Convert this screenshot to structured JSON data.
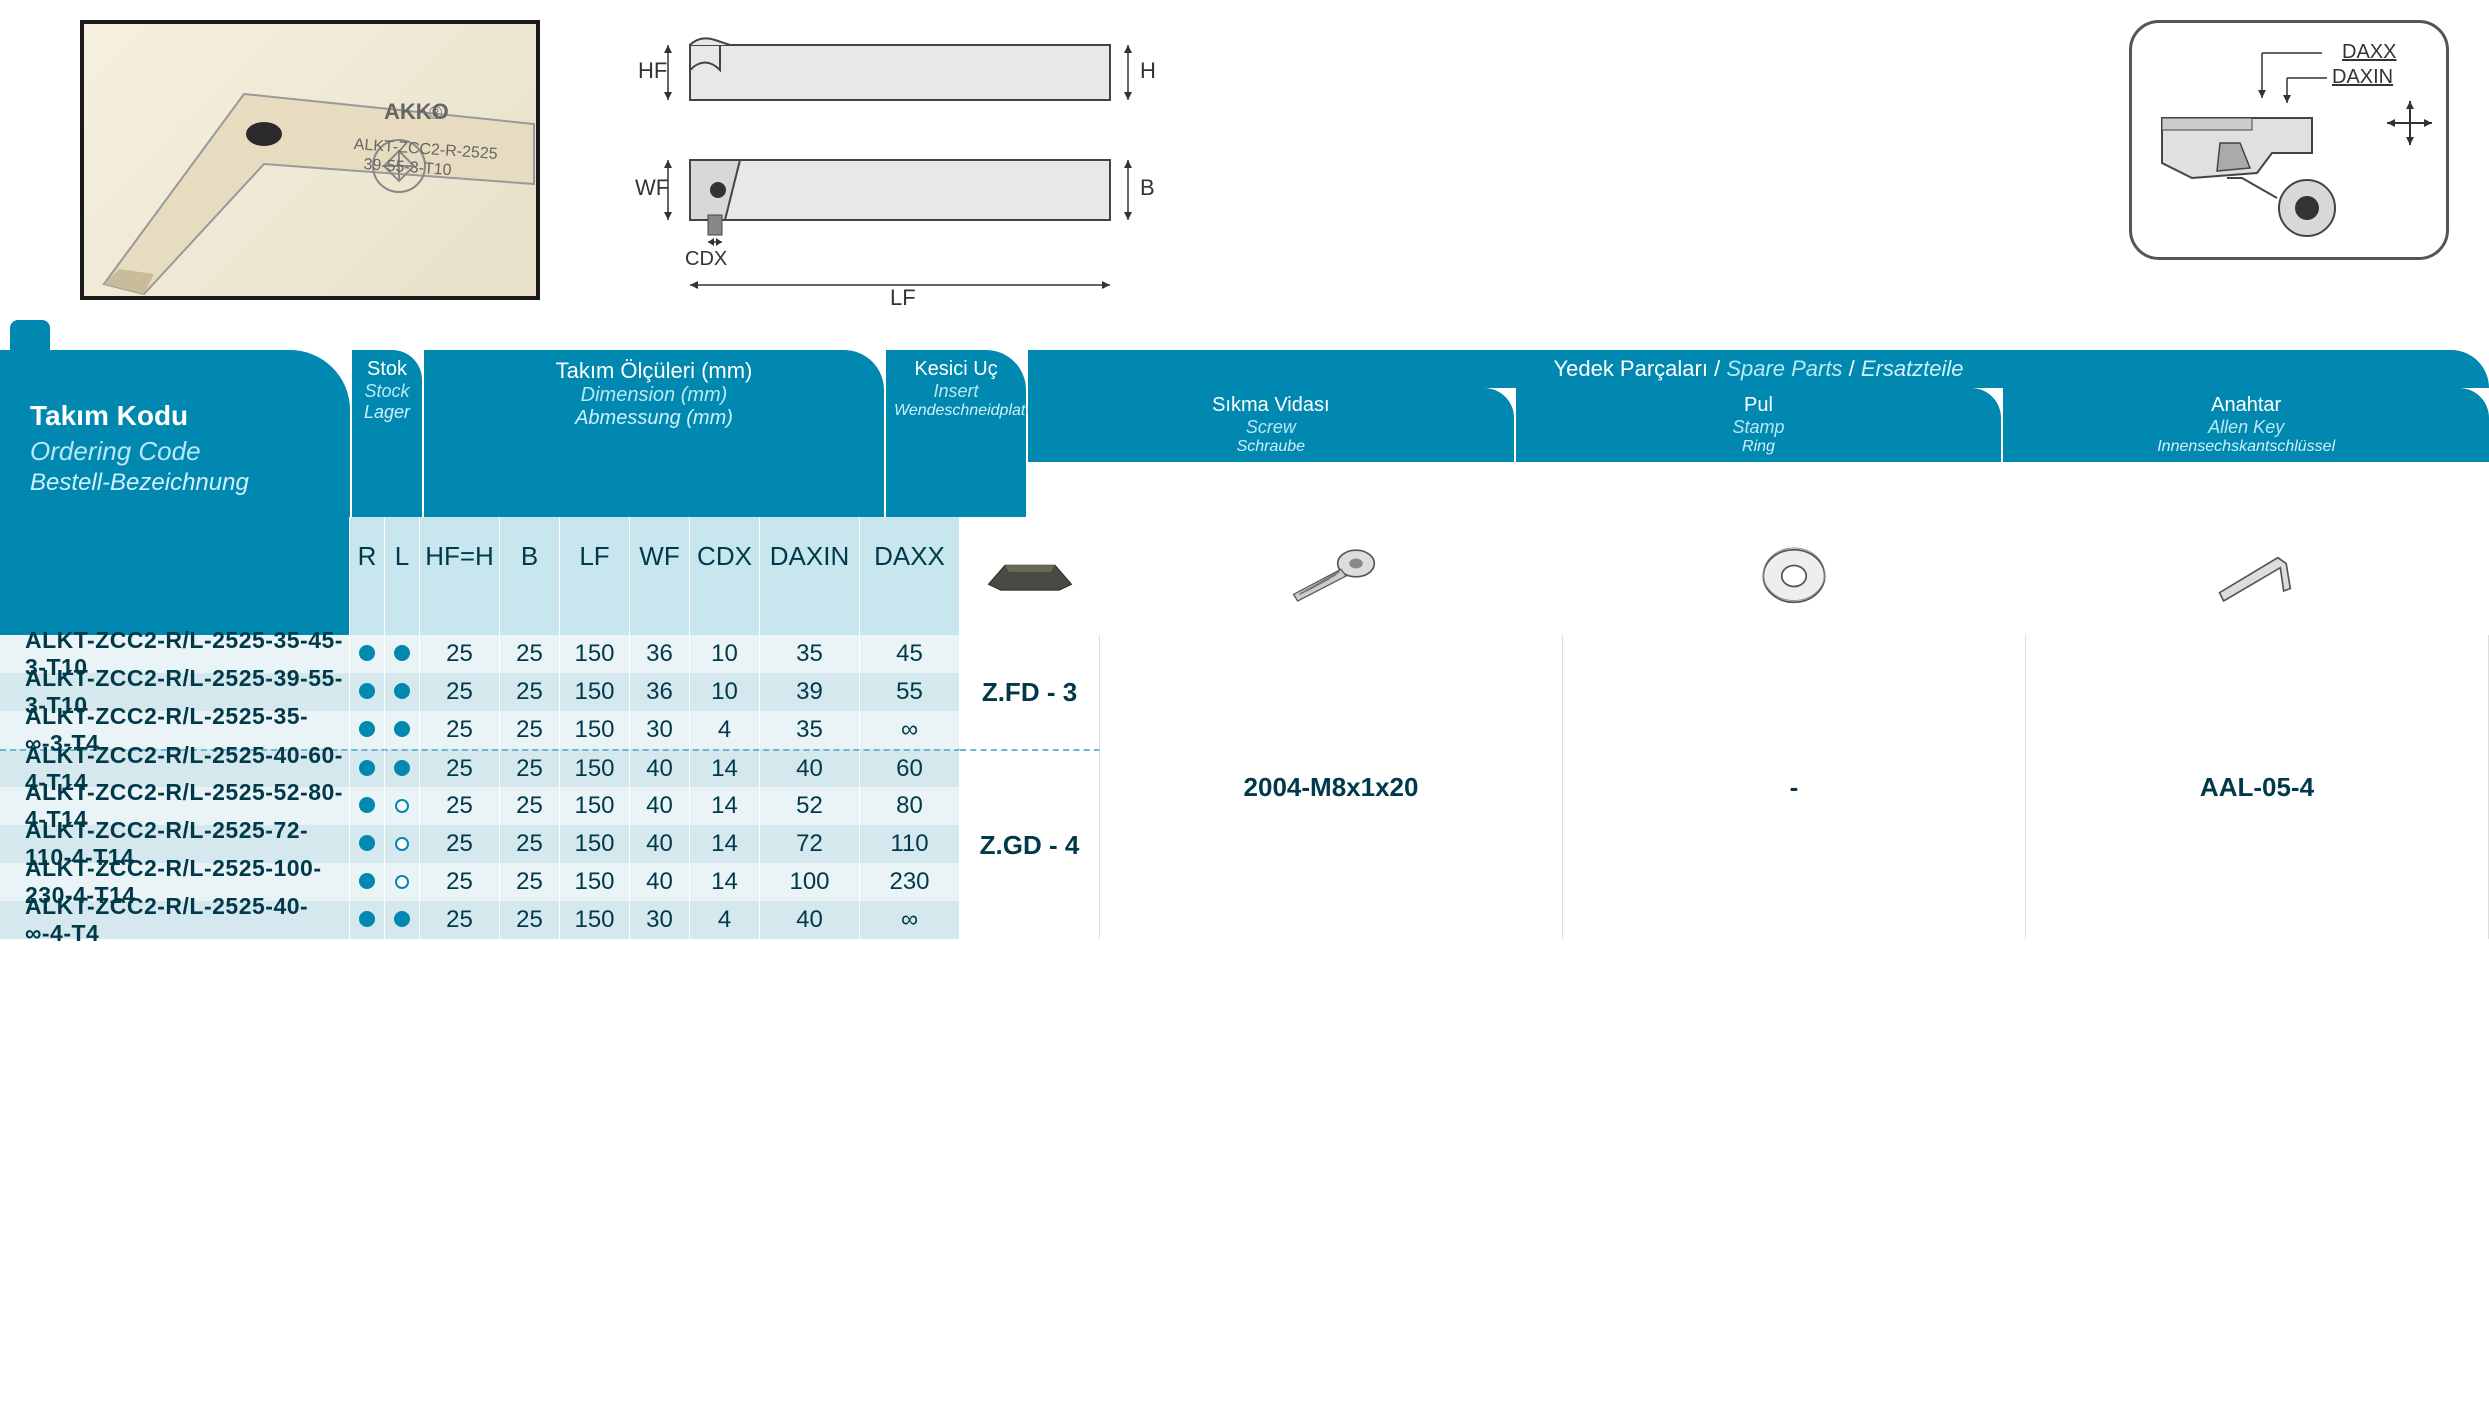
{
  "colors": {
    "header_bg": "#0088b0",
    "subheader_bg": "#c8e6ee",
    "row_odd": "#eaf3f6",
    "row_even": "#d4e8ee",
    "text_dark": "#003a4a",
    "accent_light": "#b8e8f5"
  },
  "product_label": {
    "brand": "AKKO",
    "model": "ALKT-ZCC2-R-2525",
    "code": "39-55-3-T10"
  },
  "diagram_labels": {
    "hf": "HF",
    "h": "H",
    "wf": "WF",
    "b": "B",
    "cdx": "CDX",
    "lf": "LF",
    "daxx": "DAXX",
    "daxin": "DAXIN"
  },
  "headers": {
    "ordering_code": {
      "tr": "Takım Kodu",
      "en": "Ordering Code",
      "de": "Bestell-Bezeichnung"
    },
    "stock": {
      "tr": "Stok",
      "en": "Stock",
      "de": "Lager"
    },
    "dimensions": {
      "tr": "Takım Ölçüleri (mm)",
      "en": "Dimension (mm)",
      "de": "Abmessung (mm)"
    },
    "insert": {
      "tr": "Kesici Uç",
      "en": "Insert",
      "de": "Wendeschneidplatte"
    },
    "spare_parts": {
      "tr": "Yedek Parçaları",
      "en": "Spare Parts",
      "de": "Ersatzteile"
    },
    "screw": {
      "tr": "Sıkma Vidası",
      "en": "Screw",
      "de": "Schraube"
    },
    "stamp": {
      "tr": "Pul",
      "en": "Stamp",
      "de": "Ring"
    },
    "key": {
      "tr": "Anahtar",
      "en": "Allen Key",
      "de": "Innensechskantschlüssel"
    }
  },
  "sub_headers": {
    "r": "R",
    "l": "L",
    "hf": "HF=H",
    "b": "B",
    "lf": "LF",
    "wf": "WF",
    "cdx": "CDX",
    "daxin": "DAXIN",
    "daxx": "DAXX"
  },
  "groups": [
    {
      "insert": "Z.FD - 3",
      "rows": [
        {
          "code": "ALKT-ZCC2-R/L-2525-35-45-3-T10",
          "r": true,
          "l": true,
          "hf": "25",
          "b": "25",
          "lf": "150",
          "wf": "36",
          "cdx": "10",
          "daxin": "35",
          "daxx": "45"
        },
        {
          "code": "ALKT-ZCC2-R/L-2525-39-55-3-T10",
          "r": true,
          "l": true,
          "hf": "25",
          "b": "25",
          "lf": "150",
          "wf": "36",
          "cdx": "10",
          "daxin": "39",
          "daxx": "55"
        },
        {
          "code": "ALKT-ZCC2-R/L-2525-35-∞-3-T4",
          "r": true,
          "l": true,
          "hf": "25",
          "b": "25",
          "lf": "150",
          "wf": "30",
          "cdx": "4",
          "daxin": "35",
          "daxx": "∞"
        }
      ]
    },
    {
      "insert": "Z.GD - 4",
      "rows": [
        {
          "code": "ALKT-ZCC2-R/L-2525-40-60-4-T14",
          "r": true,
          "l": true,
          "hf": "25",
          "b": "25",
          "lf": "150",
          "wf": "40",
          "cdx": "14",
          "daxin": "40",
          "daxx": "60"
        },
        {
          "code": "ALKT-ZCC2-R/L-2525-52-80-4-T14",
          "r": true,
          "l": false,
          "hf": "25",
          "b": "25",
          "lf": "150",
          "wf": "40",
          "cdx": "14",
          "daxin": "52",
          "daxx": "80"
        },
        {
          "code": "ALKT-ZCC2-R/L-2525-72-110-4-T14",
          "r": true,
          "l": false,
          "hf": "25",
          "b": "25",
          "lf": "150",
          "wf": "40",
          "cdx": "14",
          "daxin": "72",
          "daxx": "110"
        },
        {
          "code": "ALKT-ZCC2-R/L-2525-100-230-4-T14",
          "r": true,
          "l": false,
          "hf": "25",
          "b": "25",
          "lf": "150",
          "wf": "40",
          "cdx": "14",
          "daxin": "100",
          "daxx": "230"
        },
        {
          "code": "ALKT-ZCC2-R/L-2525-40-∞-4-T4",
          "r": true,
          "l": true,
          "hf": "25",
          "b": "25",
          "lf": "150",
          "wf": "30",
          "cdx": "4",
          "daxin": "40",
          "daxx": "∞"
        }
      ]
    }
  ],
  "spare_values": {
    "screw": "2004-M8x1x20",
    "stamp": "-",
    "key": "AAL-05-4"
  }
}
